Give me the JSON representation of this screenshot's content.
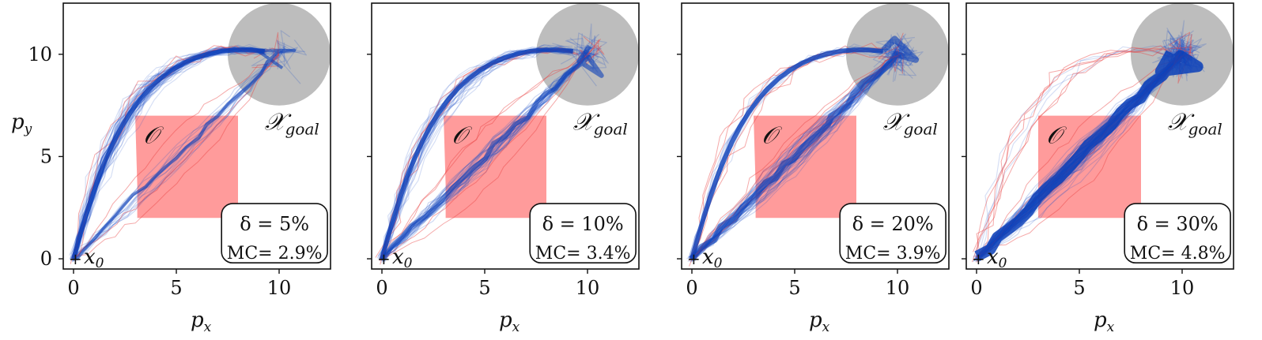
{
  "figure": {
    "panels": [
      {
        "delta_label": "δ = 5%",
        "mc_label": "MC= 2.9%"
      },
      {
        "delta_label": "δ = 10%",
        "mc_label": "MC= 3.4%"
      },
      {
        "delta_label": "δ = 20%",
        "mc_label": "MC= 3.9%"
      },
      {
        "delta_label": "δ = 30%",
        "mc_label": "MC= 4.8%"
      }
    ],
    "xlabel_main": "p",
    "xlabel_sub": "x",
    "ylabel_main": "p",
    "ylabel_sub": "y",
    "obstacle_label": "𝒪",
    "goal_label_main": "𝒳",
    "goal_label_sub": "goal",
    "start_label_main": "x",
    "start_label_sub": "0"
  },
  "chart_data": [
    {
      "type": "line",
      "title": "",
      "xticks": [
        0,
        5,
        10
      ],
      "yticks": [
        0,
        5,
        10
      ],
      "xlim": [
        -0.5,
        12.5
      ],
      "ylim": [
        -0.5,
        12.5
      ],
      "obstacle": {
        "x_range": [
          3,
          8
        ],
        "y_range": [
          2,
          7
        ],
        "shape": "pentagon"
      },
      "goal_region": {
        "center": [
          10,
          10
        ],
        "radius": 2.5
      },
      "start": [
        0,
        0
      ],
      "delta_percent": 5,
      "mc_percent": 2.9,
      "colors": {
        "trajectories": "#1e50c8",
        "violations": "#e84040",
        "obstacle": "#ff8a8a",
        "goal": "#bdbdbd"
      }
    },
    {
      "type": "line",
      "title": "",
      "xticks": [
        0,
        5,
        10
      ],
      "yticks": [
        0,
        5,
        10
      ],
      "xlim": [
        -0.5,
        12.5
      ],
      "ylim": [
        -0.5,
        12.5
      ],
      "obstacle": {
        "x_range": [
          3,
          8
        ],
        "y_range": [
          2,
          7
        ],
        "shape": "pentagon"
      },
      "goal_region": {
        "center": [
          10,
          10
        ],
        "radius": 2.5
      },
      "start": [
        0,
        0
      ],
      "delta_percent": 10,
      "mc_percent": 3.4,
      "colors": {
        "trajectories": "#1e50c8",
        "violations": "#e84040",
        "obstacle": "#ff8a8a",
        "goal": "#bdbdbd"
      }
    },
    {
      "type": "line",
      "title": "",
      "xticks": [
        0,
        5,
        10
      ],
      "yticks": [
        0,
        5,
        10
      ],
      "xlim": [
        -0.5,
        12.5
      ],
      "ylim": [
        -0.5,
        12.5
      ],
      "obstacle": {
        "x_range": [
          3,
          8
        ],
        "y_range": [
          2,
          7
        ],
        "shape": "pentagon"
      },
      "goal_region": {
        "center": [
          10,
          10
        ],
        "radius": 2.5
      },
      "start": [
        0,
        0
      ],
      "delta_percent": 20,
      "mc_percent": 3.9,
      "colors": {
        "trajectories": "#1e50c8",
        "violations": "#e84040",
        "obstacle": "#ff8a8a",
        "goal": "#bdbdbd"
      }
    },
    {
      "type": "line",
      "title": "",
      "xticks": [
        0,
        5,
        10
      ],
      "yticks": [
        0,
        5,
        10
      ],
      "xlim": [
        -0.5,
        12.5
      ],
      "ylim": [
        -0.5,
        12.5
      ],
      "obstacle": {
        "x_range": [
          3,
          8
        ],
        "y_range": [
          2,
          7
        ],
        "shape": "square"
      },
      "goal_region": {
        "center": [
          10,
          10
        ],
        "radius": 2.5
      },
      "start": [
        0,
        0
      ],
      "delta_percent": 30,
      "mc_percent": 4.8,
      "colors": {
        "trajectories": "#1e50c8",
        "violations": "#e84040",
        "obstacle": "#ff8a8a",
        "goal": "#bdbdbd"
      }
    }
  ]
}
